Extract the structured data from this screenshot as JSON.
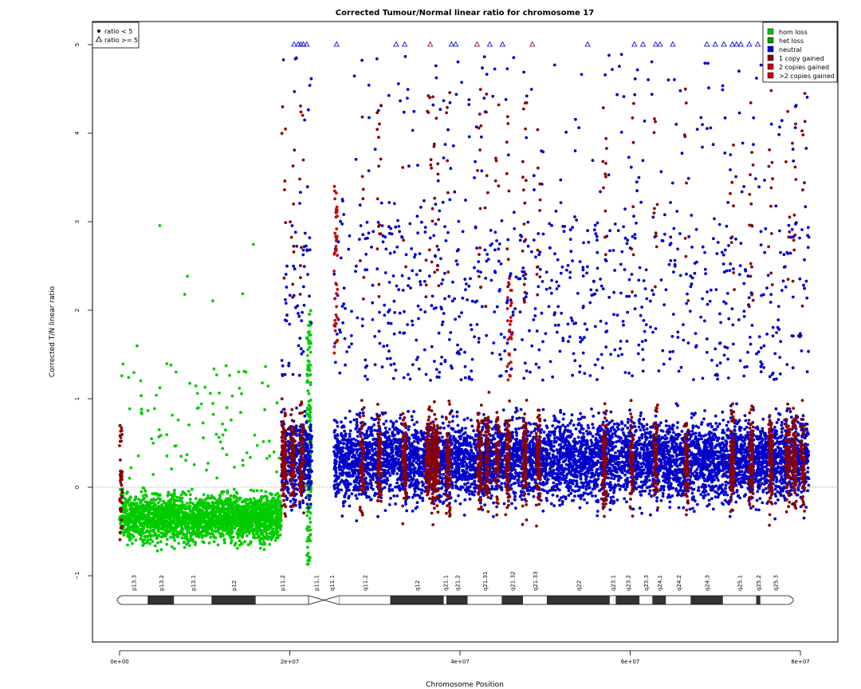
{
  "chart_data": {
    "type": "scatter",
    "title": "Corrected Tumour/Normal linear ratio for chromosome  17",
    "xlabel": "Chromosome Position",
    "ylabel": "Corrected T/N linear ratio",
    "xlim": [
      -1600000,
      84000000
    ],
    "ylim": [
      -1.8,
      5.25
    ],
    "xticks": [
      {
        "value": 0,
        "label": "0e+00"
      },
      {
        "value": 20000000,
        "label": "2e+07"
      },
      {
        "value": 40000000,
        "label": "4e+07"
      },
      {
        "value": 60000000,
        "label": "6e+07"
      },
      {
        "value": 80000000,
        "label": "8e+07"
      }
    ],
    "yticks": [
      {
        "value": -1,
        "label": "−1"
      },
      {
        "value": 0,
        "label": "0"
      },
      {
        "value": 1,
        "label": "1"
      },
      {
        "value": 2,
        "label": "2"
      },
      {
        "value": 3,
        "label": "3"
      },
      {
        "value": 4,
        "label": "4"
      },
      {
        "value": 5,
        "label": "5"
      }
    ],
    "reference_line_y": 0,
    "grid": false,
    "cap_value": 5,
    "legend_shape": {
      "position": "top-left",
      "entries": [
        {
          "label": "ratio < 5",
          "symbol": "dot"
        },
        {
          "label": "ratio >= 5",
          "symbol": "triangle"
        }
      ]
    },
    "legend_status": {
      "position": "top-right",
      "entries": [
        {
          "label": "hom loss",
          "color": "#00CC00"
        },
        {
          "label": "het loss",
          "color": "#009900"
        },
        {
          "label": "neutral",
          "color": "#0000CC"
        },
        {
          "label": "1 copy gained",
          "color": "#8B0000"
        },
        {
          "label": "2 copies gained",
          "color": "#CC0000"
        },
        {
          "label": ">2 copies gained",
          "color": "#CC0000"
        }
      ]
    },
    "series": [
      {
        "name": "het loss",
        "color": "#00CC00",
        "x_range": [
          0,
          19000000
        ],
        "y_typical": [
          -0.7,
          0.2
        ],
        "y_max": 3.1
      },
      {
        "name": "neutral",
        "color": "#0000CC",
        "x_range": [
          19000000,
          81000000
        ],
        "y_typical": [
          -0.5,
          1.5
        ],
        "y_max": 5
      },
      {
        "name": "1 copy gained",
        "color": "#8B0000",
        "y_typical": [
          -0.4,
          2.5
        ],
        "y_max": 5
      },
      {
        "name": "2 copies gained",
        "color": "#CC0000",
        "y_typical": [
          0,
          3.3
        ],
        "y_max": 5
      }
    ],
    "capped_points_x": [
      20.5,
      21,
      21.3,
      21.6,
      22,
      25.5,
      32.5,
      33.5,
      36.5,
      39,
      39.5,
      42,
      43.5,
      45,
      48.5,
      55,
      60.5,
      61.5,
      63,
      63.5,
      65,
      69,
      70,
      71,
      72,
      72.5,
      73,
      74,
      75,
      76,
      77,
      78,
      79,
      80
    ],
    "ideogram": {
      "bands": [
        {
          "name": "p13.3",
          "start": 0,
          "end": 3300000,
          "stain": "gneg"
        },
        {
          "name": "p13.2",
          "start": 3300000,
          "end": 6400000,
          "stain": "gpos"
        },
        {
          "name": "p13.1",
          "start": 6400000,
          "end": 10800000,
          "stain": "gneg"
        },
        {
          "name": "p12",
          "start": 10800000,
          "end": 16000000,
          "stain": "gpos"
        },
        {
          "name": "p11.2",
          "start": 16000000,
          "end": 22200000,
          "stain": "gneg"
        },
        {
          "name": "p11.1",
          "start": 22200000,
          "end": 24000000,
          "stain": "acen"
        },
        {
          "name": "q11.1",
          "start": 24000000,
          "end": 25800000,
          "stain": "acen"
        },
        {
          "name": "q11.2",
          "start": 25800000,
          "end": 31800000,
          "stain": "gneg"
        },
        {
          "name": "q12",
          "start": 31800000,
          "end": 38100000,
          "stain": "gpos"
        },
        {
          "name": "q21.1",
          "start": 38100000,
          "end": 38400000,
          "stain": "gneg"
        },
        {
          "name": "q21.2",
          "start": 38400000,
          "end": 40900000,
          "stain": "gpos"
        },
        {
          "name": "q21.31",
          "start": 40900000,
          "end": 44900000,
          "stain": "gneg"
        },
        {
          "name": "q21.32",
          "start": 44900000,
          "end": 47400000,
          "stain": "gpos"
        },
        {
          "name": "q21.33",
          "start": 47400000,
          "end": 50200000,
          "stain": "gneg"
        },
        {
          "name": "q22",
          "start": 50200000,
          "end": 57600000,
          "stain": "gpos"
        },
        {
          "name": "q23.1",
          "start": 57600000,
          "end": 58300000,
          "stain": "gneg"
        },
        {
          "name": "q23.2",
          "start": 58300000,
          "end": 61100000,
          "stain": "gpos"
        },
        {
          "name": "q23.3",
          "start": 61100000,
          "end": 62600000,
          "stain": "gneg"
        },
        {
          "name": "q24.1",
          "start": 62600000,
          "end": 64200000,
          "stain": "gpos"
        },
        {
          "name": "q24.2",
          "start": 64200000,
          "end": 67100000,
          "stain": "gneg"
        },
        {
          "name": "q24.3",
          "start": 67100000,
          "end": 70900000,
          "stain": "gpos"
        },
        {
          "name": "q25.1",
          "start": 70900000,
          "end": 74800000,
          "stain": "gneg"
        },
        {
          "name": "q25.2",
          "start": 74800000,
          "end": 75300000,
          "stain": "gpos"
        },
        {
          "name": "q25.3",
          "start": 75300000,
          "end": 78800000,
          "stain": "gneg"
        }
      ]
    }
  }
}
